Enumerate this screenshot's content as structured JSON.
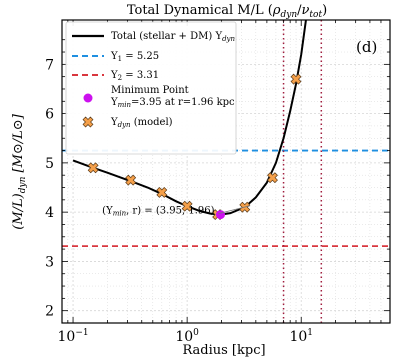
{
  "chart_data": {
    "type": "line",
    "title": "Total Dynamical M/L (ρdyn / νtot)",
    "title_parts": {
      "prefix": "Total Dynamical M/L (",
      "rho": "ρ",
      "rho_sub": "dyn",
      "slash": "/",
      "nu": "ν",
      "nu_sub": "tot",
      "suffix": ")"
    },
    "xlabel": "Radius [kpc]",
    "ylabel": "(M/L)dyn [M⊙/L⊙]",
    "ylabel_parts": {
      "main": "(M/L)",
      "sub": "dyn",
      "units": " [M⊙/L⊙]"
    },
    "x_scale": "log",
    "xlim": [
      0.08,
      60
    ],
    "ylim": [
      1.75,
      7.9
    ],
    "x_ticks": [
      0.1,
      1,
      10
    ],
    "x_tick_labels": [
      {
        "base": "10",
        "exp": "−1"
      },
      {
        "base": "10",
        "exp": "0"
      },
      {
        "base": "10",
        "exp": "1"
      }
    ],
    "y_ticks": [
      2,
      3,
      4,
      5,
      6,
      7
    ],
    "y_tick_labels": [
      "2",
      "3",
      "4",
      "5",
      "6",
      "7"
    ],
    "grid": true,
    "legend_placement": "upper-left",
    "panel_label": "(d)",
    "series": [
      {
        "name": "Total (stellar + DM) Υdyn",
        "name_parts": {
          "main": "Total (stellar + DM) Υ",
          "sub": "dyn"
        },
        "style": "solid",
        "color": "#000000",
        "x": [
          0.1,
          0.15,
          0.2,
          0.32,
          0.45,
          0.6,
          0.8,
          1.0,
          1.3,
          1.6,
          1.96,
          2.4,
          3.2,
          4.0,
          5.0,
          6.0,
          7.0,
          8.0,
          9.0,
          10.0,
          11.0
        ],
        "y": [
          5.05,
          4.9,
          4.8,
          4.63,
          4.5,
          4.37,
          4.22,
          4.12,
          4.02,
          3.97,
          3.95,
          3.98,
          4.1,
          4.3,
          4.6,
          5.0,
          5.5,
          6.05,
          6.6,
          7.2,
          7.9
        ]
      },
      {
        "name": "Υ1 = 5.25",
        "name_parts": {
          "main": "Υ",
          "sub": "1",
          "rest": " = 5.25"
        },
        "style": "dashed",
        "color": "#1f8fe0",
        "hline": 5.25
      },
      {
        "name": "Υ2 = 3.31",
        "name_parts": {
          "main": "Υ",
          "sub": "2",
          "rest": " = 3.31"
        },
        "style": "dashed",
        "color": "#d9363e",
        "hline": 3.31
      },
      {
        "name": "Minimum Point Υmin=3.95 at r=1.96 kpc",
        "name_parts": {
          "line1": "Minimum Point",
          "main": "Υ",
          "sub": "min",
          "rest": "=3.95 at r=1.96 kpc"
        },
        "style": "marker-circle",
        "color": "#cc11ee",
        "x": [
          1.96
        ],
        "y": [
          3.95
        ]
      },
      {
        "name": "Υdyn (model)",
        "name_parts": {
          "main": "Υ",
          "sub": "dyn",
          "rest": " (model)"
        },
        "style": "marker-x",
        "color": "#f5a04a",
        "x": [
          0.15,
          0.32,
          0.6,
          1.0,
          1.85,
          3.2,
          5.6,
          9.0
        ],
        "y": [
          4.9,
          4.65,
          4.4,
          4.12,
          3.95,
          4.1,
          4.7,
          6.7
        ]
      }
    ],
    "vertical_lines": [
      {
        "x": 7.0,
        "color": "#a01d3e",
        "style": "dotted"
      },
      {
        "x": 15.0,
        "color": "#a01d3e",
        "style": "dotted"
      }
    ],
    "annotation": {
      "text": "(Υmin, r) = (3.95, 1.96)",
      "parts": {
        "open": "(Υ",
        "sub": "min",
        "rest": ", r) = (3.95, 1.96)"
      },
      "x": 0.18,
      "y": 4.05,
      "arrow_to": {
        "x": 1.96,
        "y": 3.95
      }
    }
  }
}
